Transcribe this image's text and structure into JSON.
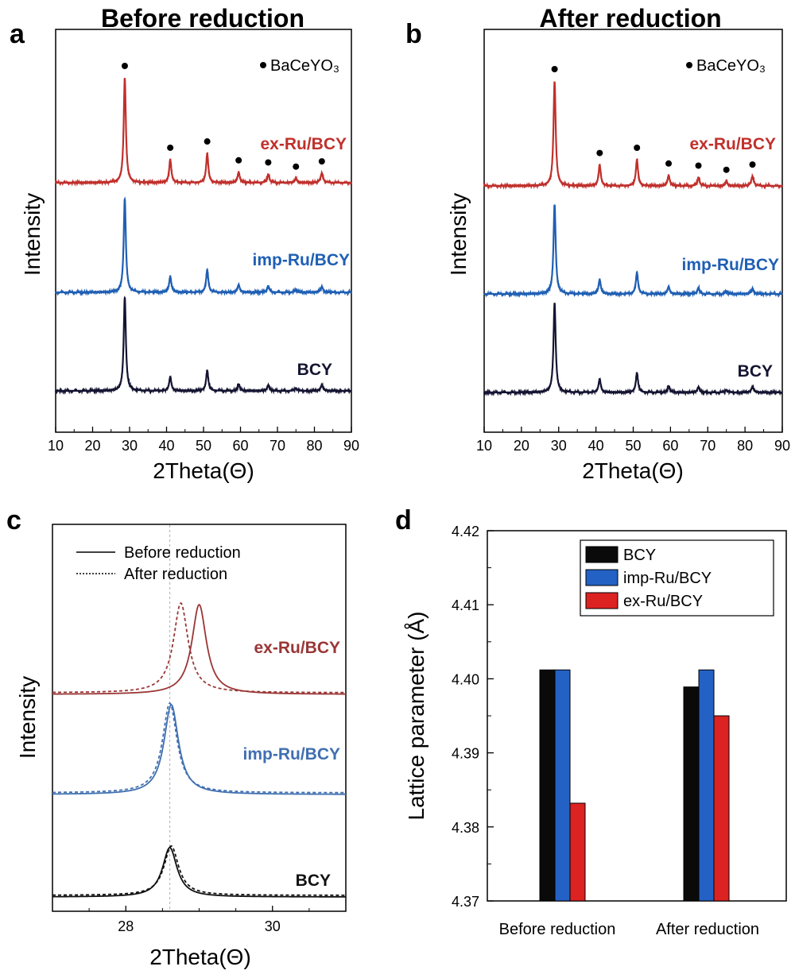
{
  "colors": {
    "BCY": "#141432",
    "imp": "#1f5fb4",
    "ex": "#c0302c",
    "c_bcy": "#111111",
    "c_imp": "#3f6fb0",
    "c_ex": "#9a3636",
    "bar_bcy": "#0a0a0a",
    "bar_imp": "#2461c4",
    "bar_ex": "#dd2222"
  },
  "chart_data": [
    {
      "id": "a",
      "panel_label": "a",
      "type": "line",
      "title": "Before reduction",
      "xlabel": "2Theta(Θ)",
      "ylabel": "Intensity",
      "xlim": [
        10,
        90
      ],
      "xticks": [
        10,
        20,
        30,
        40,
        50,
        60,
        70,
        80,
        90
      ],
      "marker_legend": "BaCeYO₃",
      "marker_positions": [
        28.7,
        41.0,
        51.0,
        59.5,
        67.5,
        75.0,
        82.0
      ],
      "peaks": [
        {
          "x": 28.7,
          "width": 0.35
        },
        {
          "x": 41.0,
          "width": 0.35
        },
        {
          "x": 51.0,
          "width": 0.35
        },
        {
          "x": 59.5,
          "width": 0.35
        },
        {
          "x": 67.5,
          "width": 0.35
        },
        {
          "x": 75.0,
          "width": 0.35
        },
        {
          "x": 82.0,
          "width": 0.4
        }
      ],
      "series": [
        {
          "name": "ex-Ru/BCY",
          "color_key": "ex",
          "relative_heights": [
            1.0,
            0.22,
            0.28,
            0.1,
            0.08,
            0.04,
            0.09
          ]
        },
        {
          "name": "imp-Ru/BCY",
          "color_key": "imp",
          "relative_heights": [
            1.0,
            0.17,
            0.24,
            0.08,
            0.07,
            0.03,
            0.06
          ]
        },
        {
          "name": "BCY",
          "color_key": "BCY",
          "relative_heights": [
            1.0,
            0.15,
            0.22,
            0.07,
            0.06,
            0.03,
            0.06
          ]
        }
      ]
    },
    {
      "id": "b",
      "panel_label": "b",
      "type": "line",
      "title": "After reduction",
      "xlabel": "2Theta(Θ)",
      "ylabel": "Intensity",
      "xlim": [
        10,
        90
      ],
      "xticks": [
        10,
        20,
        30,
        40,
        50,
        60,
        70,
        80,
        90
      ],
      "marker_legend": "BaCeYO₃",
      "marker_positions": [
        28.9,
        41.0,
        51.0,
        59.5,
        67.5,
        75.0,
        82.0
      ],
      "peaks": [
        {
          "x": 28.9,
          "width": 0.35
        },
        {
          "x": 41.0,
          "width": 0.35
        },
        {
          "x": 51.0,
          "width": 0.35
        },
        {
          "x": 59.5,
          "width": 0.35
        },
        {
          "x": 67.5,
          "width": 0.35
        },
        {
          "x": 75.0,
          "width": 0.35
        },
        {
          "x": 82.0,
          "width": 0.4
        }
      ],
      "series": [
        {
          "name": "ex-Ru/BCY",
          "color_key": "ex",
          "relative_heights": [
            1.0,
            0.2,
            0.25,
            0.1,
            0.08,
            0.04,
            0.09
          ]
        },
        {
          "name": "imp-Ru/BCY",
          "color_key": "imp",
          "relative_heights": [
            1.0,
            0.16,
            0.24,
            0.08,
            0.07,
            0.03,
            0.06
          ]
        },
        {
          "name": "BCY",
          "color_key": "BCY",
          "relative_heights": [
            1.0,
            0.15,
            0.22,
            0.07,
            0.06,
            0.03,
            0.06
          ]
        }
      ]
    },
    {
      "id": "c",
      "panel_label": "c",
      "type": "line",
      "xlabel": "2Theta(Θ)",
      "ylabel": "Intensity",
      "xlim": [
        27,
        31
      ],
      "xticks": [
        28,
        30
      ],
      "reference_line_x": 28.6,
      "legend": [
        {
          "label": "Before reduction",
          "style": "solid"
        },
        {
          "label": "After reduction",
          "style": "dotted"
        }
      ],
      "series": [
        {
          "name": "ex-Ru/BCY",
          "color_key": "c_ex",
          "before_peak": 29.0,
          "after_peak": 28.75,
          "relative_height": 1.0
        },
        {
          "name": "imp-Ru/BCY",
          "color_key": "c_imp",
          "before_peak": 28.62,
          "after_peak": 28.6,
          "relative_height": 1.0
        },
        {
          "name": "BCY",
          "color_key": "c_bcy",
          "before_peak": 28.6,
          "after_peak": 28.62,
          "relative_height": 0.55
        }
      ]
    },
    {
      "id": "d",
      "panel_label": "d",
      "type": "bar",
      "ylabel": "Lattice parameter (Å)",
      "ylim": [
        4.37,
        4.42
      ],
      "yticks": [
        "4.37",
        "4.38",
        "4.39",
        "4.40",
        "4.41",
        "4.42"
      ],
      "categories": [
        "Before reduction",
        "After reduction"
      ],
      "series": [
        {
          "name": "BCY",
          "color_key": "bar_bcy",
          "values": [
            4.4012,
            4.3989
          ]
        },
        {
          "name": "imp-Ru/BCY",
          "color_key": "bar_imp",
          "values": [
            4.4012,
            4.4012
          ]
        },
        {
          "name": "ex-Ru/BCY",
          "color_key": "bar_ex",
          "values": [
            4.3832,
            4.395
          ]
        }
      ],
      "legend_position": "top-right"
    }
  ]
}
